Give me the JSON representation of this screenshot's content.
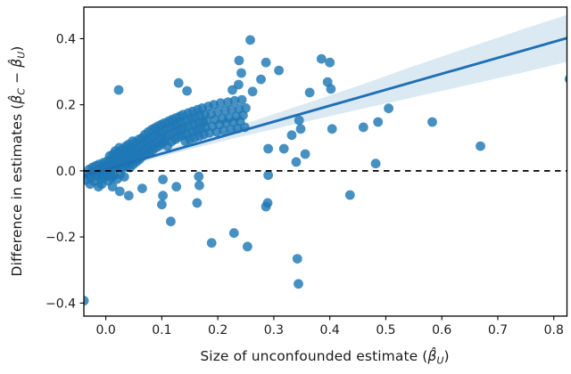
{
  "figure": {
    "background": "#ffffff"
  },
  "chart_data": {
    "type": "scatter",
    "title": "",
    "xlabel_parts": [
      {
        "text": "Size of unconfounded estimate (",
        "math": false
      },
      {
        "text": "β̂",
        "sub": "U",
        "math": true
      },
      {
        "text": ")",
        "math": false
      }
    ],
    "ylabel_parts": [
      {
        "text": "Difference in estimates (",
        "math": false
      },
      {
        "text": "β̂",
        "sub": "C",
        "math": true
      },
      {
        "text": " − ",
        "math": false
      },
      {
        "text": "β̂",
        "sub": "U",
        "math": true
      },
      {
        "text": ")",
        "math": false
      }
    ],
    "xlim": [
      -0.0392,
      0.8235
    ],
    "ylim": [
      -0.4395,
      0.4955
    ],
    "x_ticks": {
      "values": [
        0.0,
        0.1,
        0.2,
        0.3,
        0.4,
        0.5,
        0.6,
        0.7,
        0.8
      ],
      "labels": [
        "0.0",
        "0.1",
        "0.2",
        "0.3",
        "0.4",
        "0.5",
        "0.6",
        "0.7",
        "0.8"
      ]
    },
    "y_ticks": {
      "values": [
        0.4,
        0.2,
        0.0,
        -0.2,
        -0.4
      ],
      "labels": [
        "0.4",
        "0.2",
        "0.0",
        "−0.2",
        "−0.4"
      ]
    },
    "grid": false,
    "legend": null,
    "hline": {
      "y": 0.0,
      "style": "dashed",
      "color": "#000000"
    },
    "regression": {
      "x_start": -0.0392,
      "x_end": 0.8235,
      "intercept": 0.004,
      "slope": 0.483
    },
    "band": [
      [
        -0.039,
        -0.032,
        0.002
      ],
      [
        0.0,
        -0.009,
        0.017
      ],
      [
        0.05,
        0.018,
        0.038
      ],
      [
        0.08,
        0.034,
        0.052
      ],
      [
        0.15,
        0.065,
        0.087
      ],
      [
        0.25,
        0.107,
        0.143
      ],
      [
        0.35,
        0.146,
        0.2
      ],
      [
        0.45,
        0.185,
        0.257
      ],
      [
        0.55,
        0.223,
        0.317
      ],
      [
        0.65,
        0.261,
        0.375
      ],
      [
        0.75,
        0.3,
        0.432
      ],
      [
        0.8235,
        0.33,
        0.472
      ]
    ],
    "points": [
      [
        -0.039,
        -0.393
      ],
      [
        0.258,
        0.396
      ],
      [
        0.238,
        0.334
      ],
      [
        0.242,
        0.296
      ],
      [
        0.286,
        0.328
      ],
      [
        0.309,
        0.304
      ],
      [
        0.277,
        0.277
      ],
      [
        0.385,
        0.339
      ],
      [
        0.4,
        0.328
      ],
      [
        0.396,
        0.269
      ],
      [
        0.402,
        0.248
      ],
      [
        0.364,
        0.237
      ],
      [
        0.13,
        0.266
      ],
      [
        0.145,
        0.242
      ],
      [
        0.237,
        0.261
      ],
      [
        0.226,
        0.245
      ],
      [
        0.262,
        0.24
      ],
      [
        0.023,
        0.245
      ],
      [
        0.505,
        0.189
      ],
      [
        0.46,
        0.132
      ],
      [
        0.486,
        0.148
      ],
      [
        0.583,
        0.148
      ],
      [
        0.669,
        0.075
      ],
      [
        0.482,
        0.022
      ],
      [
        0.828,
        0.278
      ],
      [
        0.345,
        0.153
      ],
      [
        0.332,
        0.108
      ],
      [
        0.348,
        0.127
      ],
      [
        0.404,
        0.127
      ],
      [
        0.318,
        0.067
      ],
      [
        0.29,
        0.067
      ],
      [
        0.356,
        0.051
      ],
      [
        0.34,
        0.027
      ],
      [
        0.29,
        -0.013
      ],
      [
        0.436,
        -0.073
      ],
      [
        0.289,
        -0.097
      ],
      [
        0.286,
        -0.108
      ],
      [
        0.116,
        -0.153
      ],
      [
        0.189,
        -0.218
      ],
      [
        0.229,
        -0.188
      ],
      [
        0.253,
        -0.229
      ],
      [
        0.342,
        -0.266
      ],
      [
        0.344,
        -0.342
      ],
      [
        0.102,
        -0.026
      ],
      [
        0.102,
        -0.075
      ],
      [
        0.126,
        -0.048
      ],
      [
        0.166,
        -0.017
      ],
      [
        0.167,
        -0.044
      ],
      [
        0.1,
        -0.102
      ],
      [
        0.163,
        -0.097
      ],
      [
        -0.007,
        -0.04
      ],
      [
        0.012,
        -0.048
      ],
      [
        0.025,
        -0.062
      ],
      [
        0.041,
        -0.075
      ],
      [
        0.065,
        -0.053
      ],
      [
        -0.035,
        -0.028
      ],
      [
        -0.032,
        -0.012
      ],
      [
        -0.03,
        0.004
      ],
      [
        -0.028,
        -0.04
      ],
      [
        -0.026,
        -0.02
      ],
      [
        -0.024,
        0.01
      ],
      [
        -0.022,
        -0.005
      ],
      [
        -0.02,
        -0.032
      ],
      [
        -0.018,
        0.015
      ],
      [
        -0.016,
        -0.015
      ],
      [
        -0.015,
        0.002
      ],
      [
        -0.013,
        -0.048
      ],
      [
        -0.012,
        0.02
      ],
      [
        -0.01,
        -0.01
      ],
      [
        -0.009,
        0.008
      ],
      [
        -0.008,
        -0.025
      ],
      [
        -0.006,
        0.014
      ],
      [
        -0.005,
        -0.002
      ],
      [
        -0.004,
        0.025
      ],
      [
        -0.003,
        -0.018
      ],
      [
        -0.002,
        0.006
      ],
      [
        -0.001,
        -0.008
      ],
      [
        0.0,
        0.018
      ],
      [
        0.002,
        -0.015
      ],
      [
        0.003,
        0.03
      ],
      [
        0.004,
        0.004
      ],
      [
        0.005,
        -0.03
      ],
      [
        0.006,
        0.022
      ],
      [
        0.007,
        0.045
      ],
      [
        0.008,
        -0.008
      ],
      [
        0.009,
        0.012
      ],
      [
        0.01,
        0.035
      ],
      [
        0.011,
        -0.02
      ],
      [
        0.012,
        0.008
      ],
      [
        0.013,
        0.05
      ],
      [
        0.014,
        0.02
      ],
      [
        0.015,
        -0.012
      ],
      [
        0.016,
        0.032
      ],
      [
        0.017,
        0.06
      ],
      [
        0.018,
        0.01
      ],
      [
        0.019,
        0.042
      ],
      [
        0.02,
        -0.025
      ],
      [
        0.021,
        0.025
      ],
      [
        0.022,
        0.055
      ],
      [
        0.023,
        0.015
      ],
      [
        0.024,
        0.07
      ],
      [
        0.025,
        0.038
      ],
      [
        0.026,
        -0.01
      ],
      [
        0.027,
        0.028
      ],
      [
        0.028,
        0.048
      ],
      [
        0.029,
        0.008
      ],
      [
        0.03,
        0.065
      ],
      [
        0.031,
        0.02
      ],
      [
        0.032,
        0.04
      ],
      [
        0.033,
        -0.018
      ],
      [
        0.034,
        0.055
      ],
      [
        0.035,
        0.03
      ],
      [
        0.036,
        0.075
      ],
      [
        0.037,
        0.012
      ],
      [
        0.038,
        0.045
      ],
      [
        0.039,
        0.062
      ],
      [
        0.04,
        0.025
      ],
      [
        0.041,
        0.08
      ],
      [
        0.042,
        0.038
      ],
      [
        0.043,
        0.01
      ],
      [
        0.044,
        0.058
      ],
      [
        0.045,
        0.032
      ],
      [
        0.046,
        0.072
      ],
      [
        0.047,
        0.048
      ],
      [
        0.048,
        0.09
      ],
      [
        0.049,
        0.02
      ],
      [
        0.05,
        0.06
      ],
      [
        0.052,
        0.042
      ],
      [
        0.053,
        0.085
      ],
      [
        0.055,
        0.028
      ],
      [
        0.056,
        0.068
      ],
      [
        0.058,
        0.052
      ],
      [
        0.059,
        0.095
      ],
      [
        0.06,
        0.035
      ],
      [
        0.062,
        0.078
      ],
      [
        0.063,
        0.058
      ],
      [
        0.065,
        0.1
      ],
      [
        0.066,
        0.045
      ],
      [
        0.068,
        0.085
      ],
      [
        0.069,
        0.065
      ],
      [
        0.07,
        0.11
      ],
      [
        0.072,
        0.052
      ],
      [
        0.073,
        0.092
      ],
      [
        0.075,
        0.07
      ],
      [
        0.076,
        0.118
      ],
      [
        0.078,
        0.058
      ],
      [
        0.079,
        0.098
      ],
      [
        0.08,
        0.078
      ],
      [
        0.082,
        0.125
      ],
      [
        0.083,
        0.062
      ],
      [
        0.085,
        0.105
      ],
      [
        0.086,
        0.082
      ],
      [
        0.088,
        0.13
      ],
      [
        0.089,
        0.07
      ],
      [
        0.09,
        0.112
      ],
      [
        0.092,
        0.088
      ],
      [
        0.093,
        0.135
      ],
      [
        0.095,
        0.075
      ],
      [
        0.096,
        0.115
      ],
      [
        0.098,
        0.095
      ],
      [
        0.099,
        0.14
      ],
      [
        0.1,
        0.082
      ],
      [
        0.102,
        0.118
      ],
      [
        0.104,
        0.09
      ],
      [
        0.105,
        0.145
      ],
      [
        0.107,
        0.1
      ],
      [
        0.108,
        0.128
      ],
      [
        0.11,
        0.075
      ],
      [
        0.112,
        0.15
      ],
      [
        0.113,
        0.108
      ],
      [
        0.115,
        0.132
      ],
      [
        0.117,
        0.088
      ],
      [
        0.118,
        0.155
      ],
      [
        0.12,
        0.115
      ],
      [
        0.122,
        0.138
      ],
      [
        0.124,
        0.095
      ],
      [
        0.125,
        0.16
      ],
      [
        0.127,
        0.12
      ],
      [
        0.128,
        0.142
      ],
      [
        0.13,
        0.102
      ],
      [
        0.132,
        0.165
      ],
      [
        0.134,
        0.125
      ],
      [
        0.135,
        0.148
      ],
      [
        0.137,
        0.108
      ],
      [
        0.138,
        0.17
      ],
      [
        0.14,
        0.13
      ],
      [
        0.142,
        0.09
      ],
      [
        0.144,
        0.152
      ],
      [
        0.145,
        0.112
      ],
      [
        0.147,
        0.175
      ],
      [
        0.148,
        0.135
      ],
      [
        0.15,
        0.095
      ],
      [
        0.152,
        0.158
      ],
      [
        0.154,
        0.118
      ],
      [
        0.155,
        0.18
      ],
      [
        0.157,
        0.14
      ],
      [
        0.158,
        0.1
      ],
      [
        0.16,
        0.162
      ],
      [
        0.162,
        0.122
      ],
      [
        0.164,
        0.185
      ],
      [
        0.165,
        0.145
      ],
      [
        0.167,
        0.105
      ],
      [
        0.168,
        0.168
      ],
      [
        0.17,
        0.128
      ],
      [
        0.172,
        0.19
      ],
      [
        0.174,
        0.148
      ],
      [
        0.175,
        0.11
      ],
      [
        0.177,
        0.17
      ],
      [
        0.178,
        0.132
      ],
      [
        0.18,
        0.152
      ],
      [
        0.183,
        0.195
      ],
      [
        0.185,
        0.115
      ],
      [
        0.188,
        0.172
      ],
      [
        0.19,
        0.135
      ],
      [
        0.193,
        0.2
      ],
      [
        0.195,
        0.155
      ],
      [
        0.198,
        0.118
      ],
      [
        0.2,
        0.178
      ],
      [
        0.203,
        0.14
      ],
      [
        0.205,
        0.205
      ],
      [
        0.208,
        0.158
      ],
      [
        0.21,
        0.122
      ],
      [
        0.213,
        0.182
      ],
      [
        0.215,
        0.145
      ],
      [
        0.218,
        0.208
      ],
      [
        0.22,
        0.16
      ],
      [
        0.223,
        0.125
      ],
      [
        0.225,
        0.185
      ],
      [
        0.228,
        0.148
      ],
      [
        0.23,
        0.212
      ],
      [
        0.233,
        0.165
      ],
      [
        0.235,
        0.128
      ],
      [
        0.238,
        0.188
      ],
      [
        0.24,
        0.15
      ],
      [
        0.243,
        0.215
      ],
      [
        0.245,
        0.168
      ],
      [
        0.248,
        0.132
      ],
      [
        0.25,
        0.19
      ]
    ],
    "colors": {
      "point_fill": "#1f77b4",
      "point_alpha": 0.82,
      "line_color": "#1f6fb4",
      "band_fill": "#1f77b4",
      "band_alpha": 0.16,
      "axis_color": "#000000",
      "tick_text": "#1c1c1c"
    },
    "point_radius": 5.4,
    "line_width": 2.9
  }
}
